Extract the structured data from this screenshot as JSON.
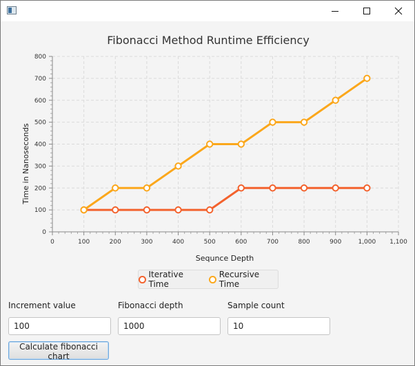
{
  "window": {
    "title": ""
  },
  "chart_data": {
    "type": "line",
    "title": "Fibonacci Method Runtime Efficiency",
    "xlabel": "Sequnce Depth",
    "ylabel": "Time in Nanoseconds",
    "x": [
      100,
      200,
      300,
      400,
      500,
      600,
      700,
      800,
      900,
      1000
    ],
    "xlim": [
      0,
      1100
    ],
    "ylim": [
      0,
      800
    ],
    "xticks": [
      "0",
      "100",
      "200",
      "300",
      "400",
      "500",
      "600",
      "700",
      "800",
      "900",
      "1,000",
      "1,100"
    ],
    "yticks": [
      "0",
      "100",
      "200",
      "300",
      "400",
      "500",
      "600",
      "700",
      "800"
    ],
    "grid": true,
    "legend_position": "bottom",
    "series": [
      {
        "name": "Iterative Time",
        "color": "#f3622d",
        "values": [
          100,
          100,
          100,
          100,
          100,
          200,
          200,
          200,
          200,
          200
        ]
      },
      {
        "name": "Recursive Time",
        "color": "#fba71b",
        "values": [
          100,
          200,
          200,
          300,
          400,
          400,
          500,
          500,
          600,
          700
        ]
      }
    ]
  },
  "controls": {
    "increment": {
      "label": "Increment value",
      "value": "100"
    },
    "depth": {
      "label": "Fibonacci depth",
      "value": "1000"
    },
    "samples": {
      "label": "Sample count",
      "value": "10"
    },
    "calculate_label": "Calculate fibonacci chart"
  }
}
